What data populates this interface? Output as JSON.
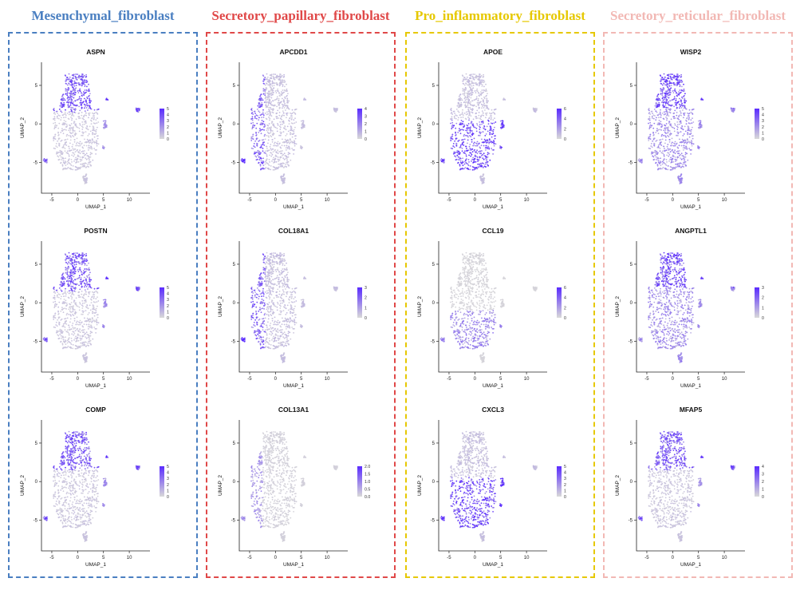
{
  "colors": {
    "high": "#5a2bff",
    "low": "#d9d9d9"
  },
  "columns": [
    {
      "title": "Mesenchymal_fibroblast",
      "color": "#4a7fc1",
      "plots": [
        {
          "gene": "ASPN",
          "ticks": [
            "5",
            "4",
            "3",
            "2",
            "1",
            "0"
          ],
          "pattern": "top"
        },
        {
          "gene": "POSTN",
          "ticks": [
            "5",
            "4",
            "3",
            "2",
            "1",
            "0"
          ],
          "pattern": "top"
        },
        {
          "gene": "COMP",
          "ticks": [
            "5",
            "4",
            "3",
            "2",
            "1",
            "0"
          ],
          "pattern": "top"
        }
      ]
    },
    {
      "title": "Secretory_papillary_fibroblast",
      "color": "#e04848",
      "plots": [
        {
          "gene": "APCDD1",
          "ticks": [
            "4",
            "3",
            "2",
            "1",
            "0"
          ],
          "pattern": "left"
        },
        {
          "gene": "COL18A1",
          "ticks": [
            "3",
            "2",
            "1",
            "0"
          ],
          "pattern": "left"
        },
        {
          "gene": "COL13A1",
          "ticks": [
            "2.0",
            "1.5",
            "1.0",
            "0.5",
            "0.0"
          ],
          "pattern": "left-faint"
        }
      ]
    },
    {
      "title": "Pro_inflammatory_fibroblast",
      "color": "#e6c800",
      "plots": [
        {
          "gene": "APOE",
          "ticks": [
            "6",
            "4",
            "2",
            "0"
          ],
          "pattern": "bottom"
        },
        {
          "gene": "CCL19",
          "ticks": [
            "6",
            "4",
            "2",
            "0"
          ],
          "pattern": "bottom-faint"
        },
        {
          "gene": "CXCL3",
          "ticks": [
            "5",
            "4",
            "3",
            "2",
            "1",
            "0"
          ],
          "pattern": "bottom"
        }
      ]
    },
    {
      "title": "Secretory_reticular_fibroblast",
      "color": "#f2b8b4",
      "plots": [
        {
          "gene": "WISP2",
          "ticks": [
            "5",
            "4",
            "3",
            "2",
            "1",
            "0"
          ],
          "pattern": "all"
        },
        {
          "gene": "ANGPTL1",
          "ticks": [
            "3",
            "2",
            "1",
            "0"
          ],
          "pattern": "all"
        },
        {
          "gene": "MFAP5",
          "ticks": [
            "4",
            "3",
            "2",
            "1",
            "0"
          ],
          "pattern": "top"
        }
      ]
    }
  ],
  "chart_data": {
    "type": "scatter",
    "xlabel": "UMAP_1",
    "ylabel": "UMAP_2",
    "x_ticks": [
      "-5",
      "0",
      "5",
      "10"
    ],
    "y_ticks": [
      "5",
      "0",
      "-5"
    ],
    "xlim": [
      -7,
      14
    ],
    "ylim": [
      -9,
      8
    ]
  }
}
